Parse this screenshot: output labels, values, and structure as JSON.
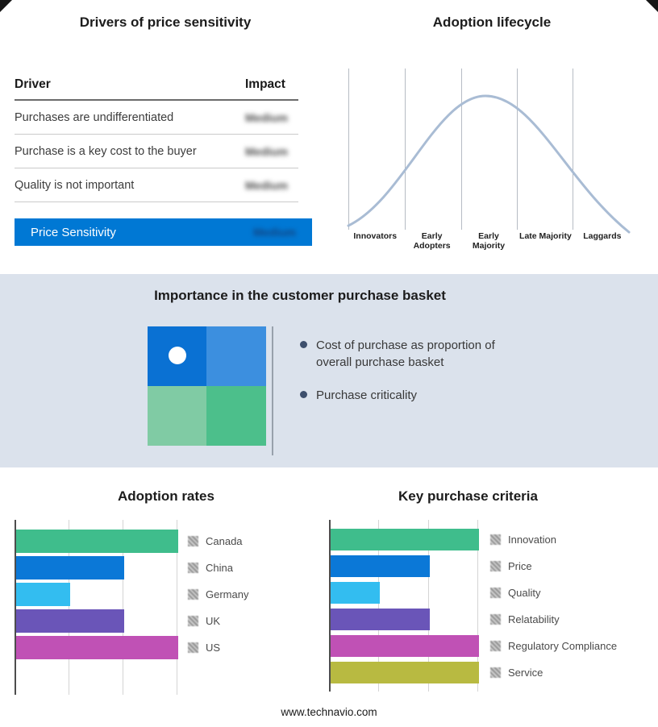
{
  "page": {
    "footer_url": "www.technavio.com",
    "band_bg": "#dbe2ec",
    "accent_blue": "#0078d4"
  },
  "drivers_panel": {
    "title": "Drivers of price sensitivity",
    "table": {
      "header": {
        "driver": "Driver",
        "impact": "Impact"
      },
      "rows": [
        {
          "driver": "Purchases are undifferentiated",
          "impact": "Medium"
        },
        {
          "driver": "Purchase is a key cost to the buyer",
          "impact": "Medium"
        },
        {
          "driver": "Quality is not important",
          "impact": "Medium"
        }
      ],
      "highlight": {
        "driver": "Price Sensitivity",
        "impact": "Medium",
        "bg": "#0078d4"
      },
      "impact_values_blurred": true
    }
  },
  "basket_panel": {
    "title": "Importance in the customer purchase basket",
    "bullets": [
      "Cost of purchase as proportion of overall purchase basket",
      "Purchase criticality"
    ],
    "quadrant_colors": {
      "top_left": "#0a71d3",
      "top_right": "#3c8fdf",
      "bottom_left": "#80cba4",
      "bottom_right": "#4cbf8b"
    }
  },
  "chart_data": [
    {
      "id": "adoption_lifecycle",
      "type": "line",
      "shape": "bell-curve",
      "title": "Adoption lifecycle",
      "categories": [
        "Innovators",
        "Early Adopters",
        "Early Majority",
        "Late Majority",
        "Laggards"
      ],
      "peak_category": "Early Majority",
      "curve_color": "#a9bcd4",
      "grid": true,
      "legend_position": "none"
    },
    {
      "id": "adoption_rates",
      "type": "bar",
      "orientation": "horizontal",
      "title": "Adoption rates",
      "categories": [
        "Canada",
        "China",
        "Germany",
        "UK",
        "US"
      ],
      "values": [
        3,
        2,
        1,
        2,
        3
      ],
      "xlim": [
        0,
        3
      ],
      "colors": [
        "#3fbd8c",
        "#0b78d7",
        "#33bdf0",
        "#6a55b8",
        "#c051b5"
      ],
      "grid": true,
      "legend_position": "right"
    },
    {
      "id": "key_purchase_criteria",
      "type": "bar",
      "orientation": "horizontal",
      "title": "Key purchase criteria",
      "categories": [
        "Innovation",
        "Price",
        "Quality",
        "Relatability",
        "Regulatory Compliance",
        "Service"
      ],
      "values": [
        3,
        2,
        1,
        2,
        3,
        3
      ],
      "xlim": [
        0,
        3
      ],
      "colors": [
        "#3fbd8c",
        "#0b78d7",
        "#33bdf0",
        "#6a55b8",
        "#c051b5",
        "#b8ba41"
      ],
      "grid": true,
      "legend_position": "right"
    }
  ]
}
